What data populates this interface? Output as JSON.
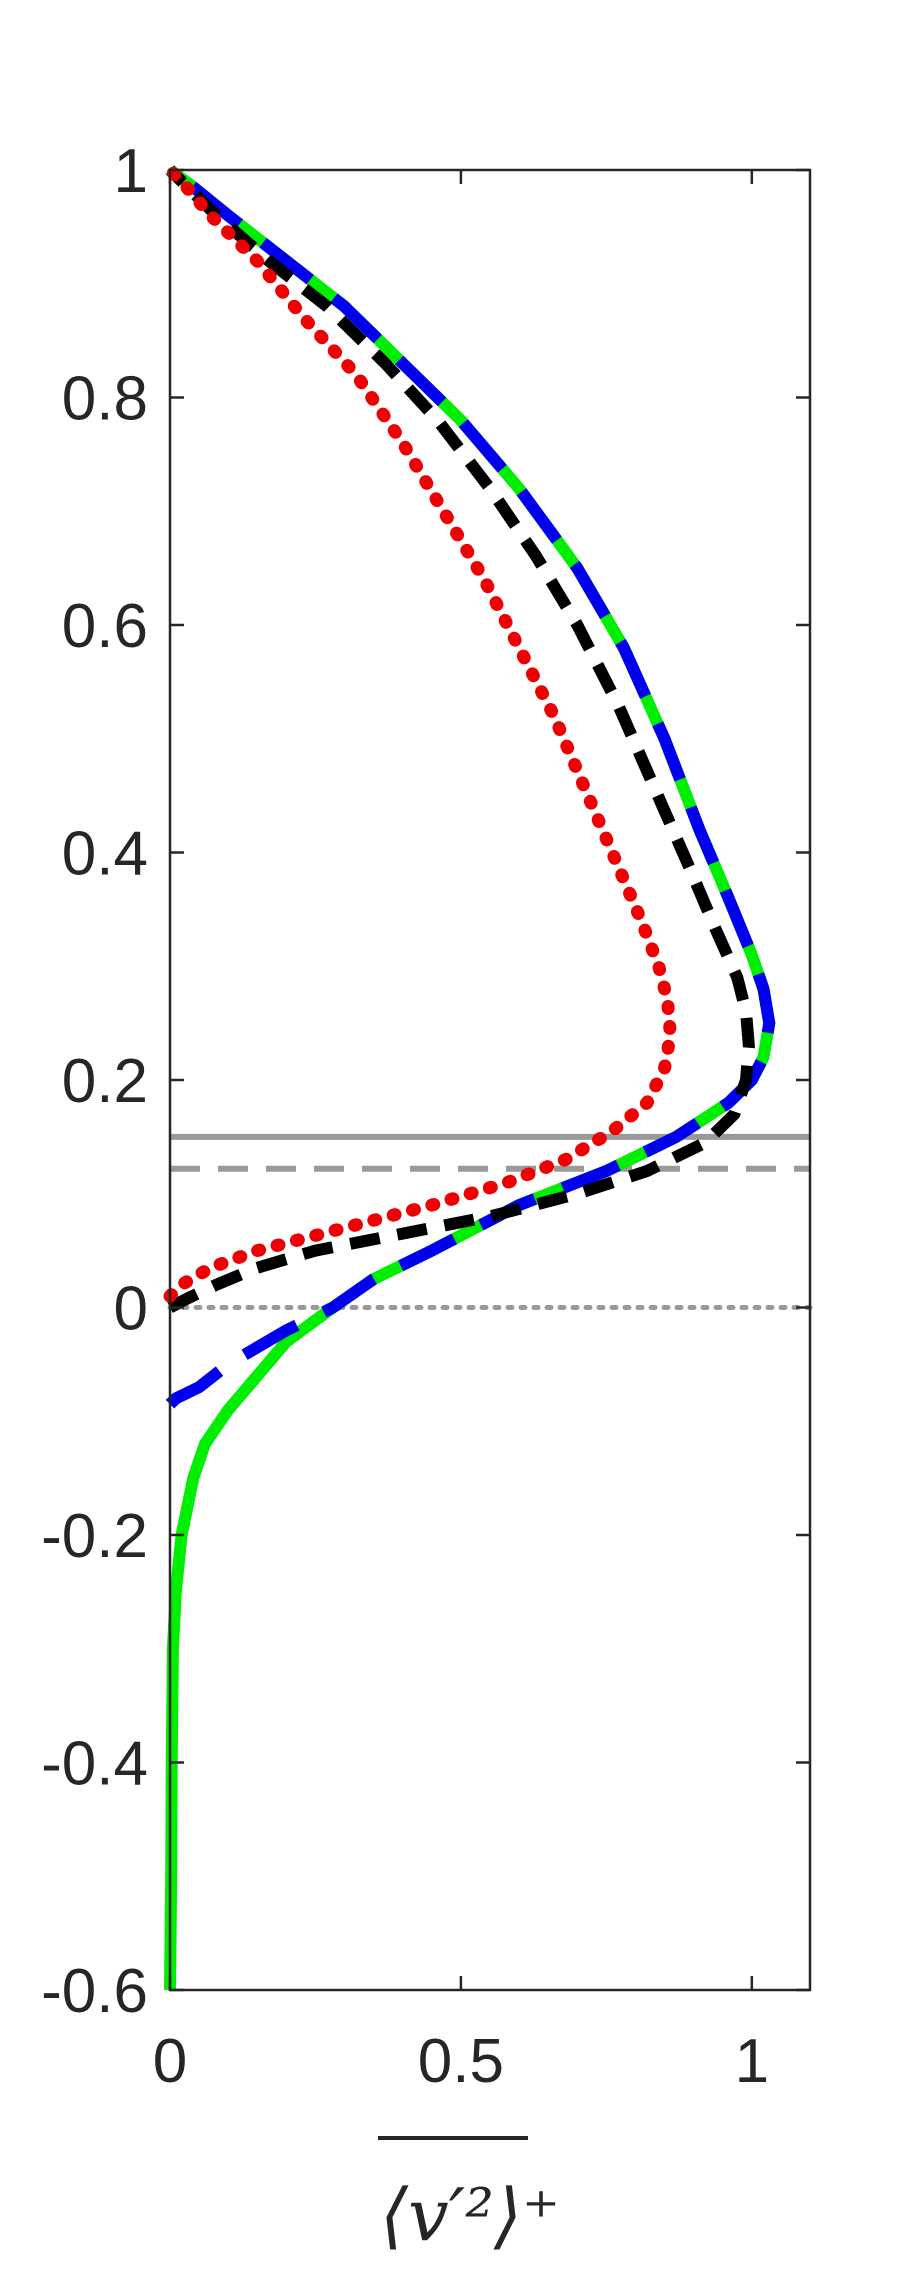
{
  "chart_data": {
    "type": "line",
    "title": "",
    "xlabel": "⟨v′²⟩⁺",
    "ylabel": "",
    "xlim": [
      0,
      1.1
    ],
    "ylim": [
      -0.6,
      1
    ],
    "xticks": [
      0,
      0.5,
      1
    ],
    "xtick_labels": [
      "0",
      "0.5",
      "1"
    ],
    "yticks": [
      -0.6,
      -0.4,
      -0.2,
      0,
      0.2,
      0.4,
      0.6,
      0.8,
      1
    ],
    "ytick_labels": [
      "-0.6",
      "-0.4",
      "-0.2",
      "0",
      "0.2",
      "0.4",
      "0.6",
      "0.8",
      "1"
    ],
    "grid": false,
    "legend": "none",
    "series": [
      {
        "color": "#00ee00",
        "style": "solid",
        "points": [
          [
            0,
            -0.6
          ],
          [
            0.002,
            -0.5
          ],
          [
            0.003,
            -0.4
          ],
          [
            0.005,
            -0.3
          ],
          [
            0.01,
            -0.25
          ],
          [
            0.02,
            -0.2
          ],
          [
            0.04,
            -0.15
          ],
          [
            0.06,
            -0.12
          ],
          [
            0.1,
            -0.09
          ],
          [
            0.15,
            -0.06
          ],
          [
            0.2,
            -0.03
          ],
          [
            0.28,
            0
          ],
          [
            0.35,
            0.025
          ],
          [
            0.45,
            0.05
          ],
          [
            0.6,
            0.09
          ],
          [
            0.75,
            0.12
          ],
          [
            0.87,
            0.15
          ],
          [
            0.96,
            0.18
          ],
          [
            1.0,
            0.2
          ],
          [
            1.02,
            0.22
          ],
          [
            1.03,
            0.25
          ],
          [
            1.02,
            0.28
          ],
          [
            1.0,
            0.31
          ],
          [
            0.96,
            0.36
          ],
          [
            0.91,
            0.42
          ],
          [
            0.85,
            0.5
          ],
          [
            0.78,
            0.58
          ],
          [
            0.7,
            0.65
          ],
          [
            0.6,
            0.72
          ],
          [
            0.5,
            0.78
          ],
          [
            0.4,
            0.83
          ],
          [
            0.3,
            0.88
          ],
          [
            0.2,
            0.92
          ],
          [
            0.1,
            0.96
          ],
          [
            0.04,
            0.985
          ],
          [
            0,
            1
          ]
        ]
      },
      {
        "color": "#0000ee",
        "style": "longdash",
        "points": [
          [
            0,
            -0.085
          ],
          [
            0.01,
            -0.08
          ],
          [
            0.05,
            -0.07
          ],
          [
            0.1,
            -0.05
          ],
          [
            0.15,
            -0.035
          ],
          [
            0.2,
            -0.02
          ],
          [
            0.28,
            0
          ],
          [
            0.35,
            0.025
          ],
          [
            0.45,
            0.05
          ],
          [
            0.6,
            0.09
          ],
          [
            0.75,
            0.12
          ],
          [
            0.87,
            0.15
          ],
          [
            0.96,
            0.18
          ],
          [
            1.0,
            0.2
          ],
          [
            1.02,
            0.22
          ],
          [
            1.03,
            0.25
          ],
          [
            1.02,
            0.28
          ],
          [
            1.0,
            0.31
          ],
          [
            0.96,
            0.36
          ],
          [
            0.91,
            0.42
          ],
          [
            0.85,
            0.5
          ],
          [
            0.78,
            0.58
          ],
          [
            0.7,
            0.65
          ],
          [
            0.6,
            0.72
          ],
          [
            0.5,
            0.78
          ],
          [
            0.4,
            0.83
          ],
          [
            0.3,
            0.88
          ],
          [
            0.2,
            0.92
          ],
          [
            0.1,
            0.96
          ],
          [
            0.04,
            0.985
          ],
          [
            0,
            1
          ]
        ]
      },
      {
        "color": "#000000",
        "style": "dash",
        "points": [
          [
            0,
            0
          ],
          [
            0.03,
            0.008
          ],
          [
            0.08,
            0.02
          ],
          [
            0.15,
            0.035
          ],
          [
            0.25,
            0.05
          ],
          [
            0.4,
            0.065
          ],
          [
            0.55,
            0.08
          ],
          [
            0.7,
            0.1
          ],
          [
            0.82,
            0.12
          ],
          [
            0.92,
            0.145
          ],
          [
            0.97,
            0.17
          ],
          [
            0.99,
            0.2
          ],
          [
            0.995,
            0.23
          ],
          [
            0.99,
            0.26
          ],
          [
            0.975,
            0.29
          ],
          [
            0.94,
            0.33
          ],
          [
            0.89,
            0.39
          ],
          [
            0.83,
            0.46
          ],
          [
            0.77,
            0.53
          ],
          [
            0.7,
            0.6
          ],
          [
            0.63,
            0.66
          ],
          [
            0.55,
            0.72
          ],
          [
            0.46,
            0.78
          ],
          [
            0.37,
            0.83
          ],
          [
            0.27,
            0.88
          ],
          [
            0.17,
            0.92
          ],
          [
            0.08,
            0.96
          ],
          [
            0.03,
            0.985
          ],
          [
            0,
            1
          ]
        ]
      },
      {
        "color": "#ee0000",
        "style": "dot",
        "points": [
          [
            0,
            0.01
          ],
          [
            0.02,
            0.02
          ],
          [
            0.07,
            0.035
          ],
          [
            0.15,
            0.05
          ],
          [
            0.3,
            0.07
          ],
          [
            0.45,
            0.09
          ],
          [
            0.58,
            0.11
          ],
          [
            0.68,
            0.13
          ],
          [
            0.76,
            0.155
          ],
          [
            0.82,
            0.18
          ],
          [
            0.85,
            0.21
          ],
          [
            0.86,
            0.24
          ],
          [
            0.855,
            0.27
          ],
          [
            0.84,
            0.3
          ],
          [
            0.81,
            0.34
          ],
          [
            0.76,
            0.4
          ],
          [
            0.71,
            0.46
          ],
          [
            0.66,
            0.52
          ],
          [
            0.6,
            0.58
          ],
          [
            0.54,
            0.64
          ],
          [
            0.47,
            0.7
          ],
          [
            0.4,
            0.76
          ],
          [
            0.32,
            0.82
          ],
          [
            0.23,
            0.87
          ],
          [
            0.15,
            0.92
          ],
          [
            0.07,
            0.96
          ],
          [
            0.02,
            0.99
          ],
          [
            0,
            1
          ]
        ]
      }
    ],
    "reference_lines": [
      {
        "y": 0.15,
        "color": "#999999",
        "style": "solid"
      },
      {
        "y": 0.122,
        "color": "#999999",
        "style": "dash"
      },
      {
        "y": 0,
        "color": "#999999",
        "style": "dot"
      }
    ]
  }
}
